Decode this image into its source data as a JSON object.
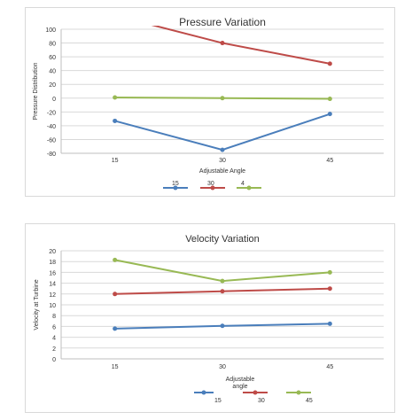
{
  "chart_data": [
    {
      "type": "line",
      "title": "Pressure Variation",
      "xlabel": "Adjustable Angle",
      "ylabel": "Pressure Distribution",
      "categories": [
        "15",
        "30",
        "45"
      ],
      "ylim": [
        -80,
        100
      ],
      "yticks": [
        100,
        80,
        60,
        40,
        20,
        0,
        -20,
        -40,
        -60,
        -80
      ],
      "grid": true,
      "legend_position": "bottom",
      "series": [
        {
          "name": "15",
          "color": "#4a7ebb",
          "values": [
            -33,
            -75,
            -23
          ]
        },
        {
          "name": "30",
          "color": "#be4b48",
          "values": [
            120,
            80,
            50
          ]
        },
        {
          "name": "4",
          "color": "#98b954",
          "values": [
            1,
            0,
            -1
          ]
        }
      ]
    },
    {
      "type": "line",
      "title": "Velocity Variation",
      "xlabel": "Adjustable angle",
      "ylabel": "Velocity at Turbine",
      "categories": [
        "15",
        "30",
        "45"
      ],
      "ylim": [
        0,
        20
      ],
      "yticks": [
        20,
        18,
        16,
        14,
        12,
        10,
        8,
        6,
        4,
        2,
        0
      ],
      "grid": true,
      "legend_position": "bottom",
      "series": [
        {
          "name": "15",
          "color": "#4a7ebb",
          "values": [
            5.6,
            6.1,
            6.5
          ]
        },
        {
          "name": "30",
          "color": "#be4b48",
          "values": [
            12.0,
            12.5,
            13.0
          ]
        },
        {
          "name": "45",
          "color": "#98b954",
          "values": [
            18.3,
            14.4,
            16.0
          ]
        }
      ]
    }
  ]
}
